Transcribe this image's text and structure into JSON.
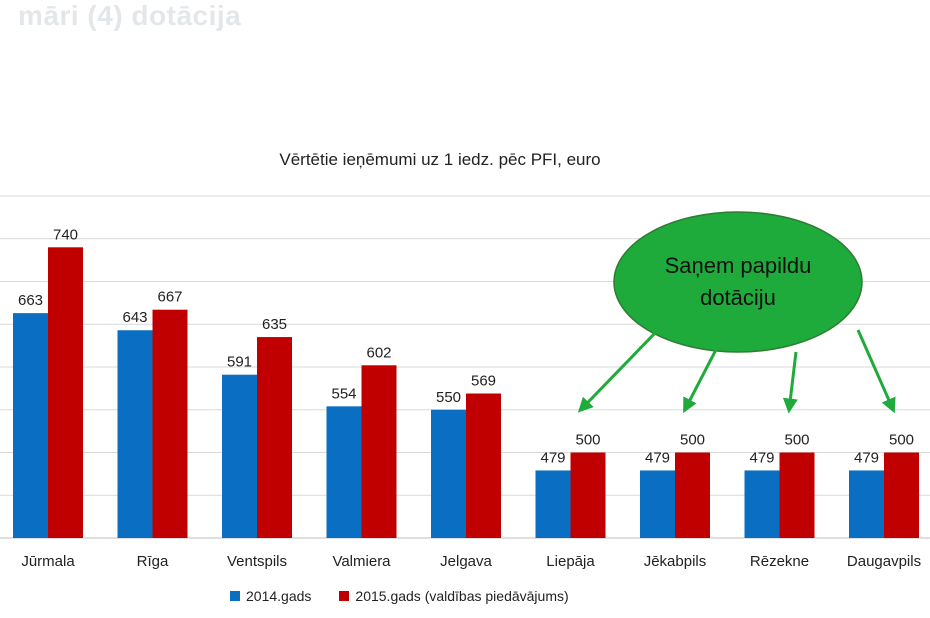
{
  "slide": {
    "faded_heading": "māri (4) dotācija",
    "faded_subline": "",
    "callout_text_line1": "Saņem papildu",
    "callout_text_line2": "dotāciju",
    "callout_color": "#1faa3c"
  },
  "chart_data": {
    "type": "bar",
    "title": "Vērtētie ieņēmumi uz 1 iedz. pēc PFI, euro",
    "categories": [
      "Jūrmala",
      "Rīga",
      "Ventspils",
      "Valmiera",
      "Jelgava",
      "Liepāja",
      "Jēkabpils",
      "Rēzekne",
      "Daugavpils"
    ],
    "series": [
      {
        "name": "2014.gads",
        "color": "#0a6fc2",
        "values": [
          663,
          643,
          591,
          554,
          550,
          479,
          479,
          479,
          479
        ]
      },
      {
        "name": "2015.gads (valdības piedāvājums)",
        "color": "#c00000",
        "values": [
          740,
          667,
          635,
          602,
          569,
          500,
          500,
          500,
          500
        ]
      }
    ],
    "ylim": [
      400,
      800
    ],
    "grid": true,
    "legend": "bottom",
    "xlabel": "",
    "ylabel": ""
  }
}
